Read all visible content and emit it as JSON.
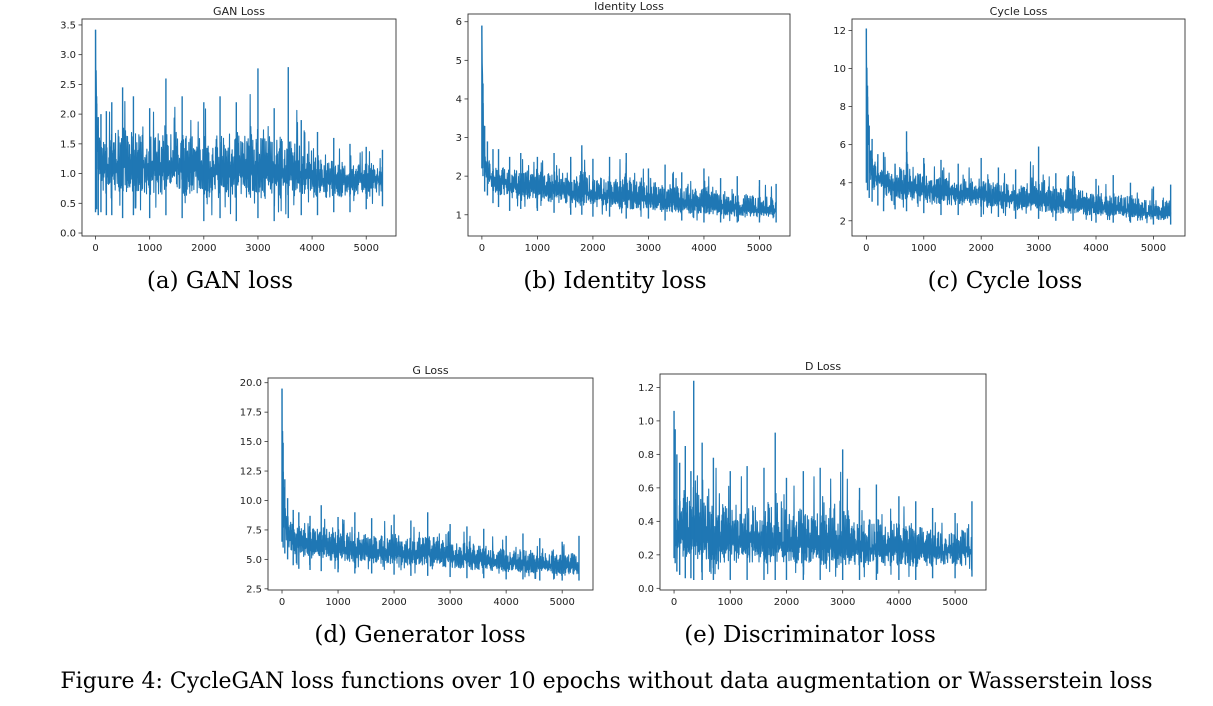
{
  "figure_caption": "Figure 4: CycleGAN loss functions over 10 epochs without data augmentation or Wasserstein loss",
  "line_color": "#1f77b4",
  "chart_data": [
    {
      "id": "gan",
      "type": "line",
      "title": "GAN Loss",
      "caption": "(a) GAN loss",
      "xlabel": "",
      "ylabel": "",
      "xlim": [
        -250,
        5550
      ],
      "ylim": [
        -0.05,
        3.6
      ],
      "xticks": [
        0,
        1000,
        2000,
        3000,
        4000,
        5000
      ],
      "yticks": [
        0.0,
        0.5,
        1.0,
        1.5,
        2.0,
        2.5,
        3.0,
        3.5
      ],
      "ytick_labels": [
        "0.0",
        "0.5",
        "1.0",
        "1.5",
        "2.0",
        "2.5",
        "3.0",
        "3.5"
      ],
      "series": [
        {
          "x": [
            0,
            20,
            50,
            100,
            200,
            300,
            500,
            700,
            1000,
            1300,
            1600,
            2000,
            2300,
            2600,
            3000,
            3300,
            3560,
            3800,
            4100,
            4400,
            4700,
            5000,
            5300
          ],
          "y": [
            3.42,
            2.3,
            1.4,
            1.2,
            1.1,
            1.15,
            1.1,
            1.15,
            1.1,
            1.05,
            1.1,
            1.05,
            1.0,
            1.05,
            1.0,
            0.98,
            1.0,
            0.95,
            0.92,
            0.9,
            0.9,
            0.92,
            0.9
          ],
          "low": [
            0.35,
            0.4,
            0.3,
            0.35,
            0.3,
            0.3,
            0.25,
            0.3,
            0.25,
            0.3,
            0.25,
            0.2,
            0.25,
            0.2,
            0.25,
            0.2,
            0.25,
            0.3,
            0.3,
            0.35,
            0.35,
            0.4,
            0.45
          ],
          "high": [
            3.42,
            2.3,
            1.95,
            2.0,
            2.05,
            2.2,
            2.45,
            2.3,
            2.1,
            2.6,
            2.3,
            2.2,
            2.3,
            2.2,
            2.77,
            2.1,
            2.79,
            1.9,
            1.7,
            1.6,
            1.5,
            1.45,
            1.4
          ]
        }
      ]
    },
    {
      "id": "identity",
      "type": "line",
      "title": "Identity Loss",
      "caption": "(b) Identity loss",
      "xlabel": "",
      "ylabel": "",
      "xlim": [
        -250,
        5550
      ],
      "ylim": [
        0.45,
        6.2
      ],
      "xticks": [
        0,
        1000,
        2000,
        3000,
        4000,
        5000
      ],
      "yticks": [
        1,
        2,
        3,
        4,
        5,
        6
      ],
      "ytick_labels": [
        "1",
        "2",
        "3",
        "4",
        "5",
        "6"
      ],
      "series": [
        {
          "x": [
            0,
            20,
            50,
            100,
            200,
            300,
            500,
            700,
            1000,
            1300,
            1600,
            1800,
            2000,
            2300,
            2600,
            3000,
            3300,
            3600,
            4000,
            4300,
            4600,
            5000,
            5300
          ],
          "y": [
            5.9,
            3.6,
            2.4,
            2.1,
            1.9,
            1.85,
            1.8,
            1.75,
            1.7,
            1.65,
            1.6,
            1.55,
            1.5,
            1.5,
            1.45,
            1.4,
            1.35,
            1.3,
            1.25,
            1.2,
            1.15,
            1.1,
            1.1
          ],
          "low": [
            2.2,
            2.0,
            1.6,
            1.5,
            1.3,
            1.2,
            1.1,
            1.15,
            1.1,
            1.05,
            1.0,
            1.0,
            0.95,
            0.95,
            0.9,
            0.9,
            0.85,
            0.85,
            0.8,
            0.8,
            0.8,
            0.8,
            0.8
          ],
          "high": [
            5.9,
            4.4,
            3.3,
            2.9,
            2.7,
            2.7,
            2.5,
            2.6,
            2.5,
            2.6,
            2.5,
            2.8,
            2.45,
            2.5,
            2.6,
            2.2,
            2.3,
            2.1,
            2.2,
            1.95,
            2.0,
            1.9,
            1.8
          ]
        }
      ]
    },
    {
      "id": "cycle",
      "type": "line",
      "title": "Cycle Loss",
      "caption": "(c) Cycle loss",
      "xlabel": "",
      "ylabel": "",
      "xlim": [
        -250,
        5550
      ],
      "ylim": [
        1.2,
        12.6
      ],
      "xticks": [
        0,
        1000,
        2000,
        3000,
        4000,
        5000
      ],
      "yticks": [
        2,
        4,
        6,
        8,
        10,
        12
      ],
      "ytick_labels": [
        "2",
        "4",
        "6",
        "8",
        "10",
        "12"
      ],
      "series": [
        {
          "x": [
            0,
            20,
            50,
            100,
            200,
            300,
            500,
            700,
            1000,
            1300,
            1600,
            2000,
            2300,
            2600,
            3000,
            3300,
            3600,
            4000,
            4300,
            4600,
            5000,
            5300
          ],
          "y": [
            12.1,
            8.5,
            5.5,
            4.6,
            4.2,
            4.0,
            3.8,
            3.8,
            3.6,
            3.5,
            3.4,
            3.3,
            3.2,
            3.1,
            3.0,
            2.9,
            2.8,
            2.7,
            2.6,
            2.5,
            2.4,
            2.3
          ],
          "low": [
            4.0,
            3.6,
            3.2,
            3.0,
            2.8,
            2.5,
            2.6,
            2.5,
            2.4,
            2.3,
            2.3,
            2.2,
            2.2,
            2.1,
            2.1,
            2.0,
            2.0,
            1.9,
            1.9,
            1.9,
            1.8,
            1.8
          ],
          "high": [
            12.1,
            9.1,
            7.0,
            6.3,
            5.5,
            5.6,
            5.0,
            6.7,
            5.3,
            5.2,
            5.0,
            5.3,
            4.8,
            4.7,
            5.9,
            4.5,
            4.6,
            4.2,
            4.4,
            4.0,
            3.8,
            3.9
          ]
        }
      ]
    },
    {
      "id": "generator",
      "type": "line",
      "title": "G Loss",
      "caption": "(d) Generator loss",
      "xlabel": "",
      "ylabel": "",
      "xlim": [
        -250,
        5550
      ],
      "ylim": [
        2.4,
        20.4
      ],
      "xticks": [
        0,
        1000,
        2000,
        3000,
        4000,
        5000
      ],
      "yticks": [
        2.5,
        5.0,
        7.5,
        10.0,
        12.5,
        15.0,
        17.5,
        20.0
      ],
      "ytick_labels": [
        "2.5",
        "5.0",
        "7.5",
        "10.0",
        "12.5",
        "15.0",
        "17.5",
        "20.0"
      ],
      "series": [
        {
          "x": [
            0,
            20,
            50,
            100,
            200,
            300,
            500,
            700,
            1000,
            1300,
            1600,
            2000,
            2300,
            2600,
            3000,
            3300,
            3600,
            4000,
            4300,
            4600,
            5000,
            5300
          ],
          "y": [
            19.5,
            12.5,
            9.0,
            7.5,
            6.8,
            6.5,
            6.3,
            6.2,
            6.0,
            5.8,
            5.7,
            5.6,
            5.5,
            5.4,
            5.2,
            5.0,
            4.9,
            4.7,
            4.6,
            4.5,
            4.4,
            4.3
          ],
          "low": [
            6.5,
            6.0,
            5.5,
            5.0,
            4.5,
            4.2,
            4.1,
            4.0,
            3.9,
            3.8,
            3.8,
            3.7,
            3.6,
            3.6,
            3.5,
            3.4,
            3.4,
            3.3,
            3.3,
            3.2,
            3.2,
            3.2
          ],
          "high": [
            19.5,
            14.9,
            11.8,
            10.2,
            9.2,
            9.0,
            8.7,
            9.6,
            8.6,
            9.0,
            8.5,
            8.8,
            8.3,
            9.0,
            8.0,
            7.8,
            7.6,
            7.0,
            7.2,
            6.8,
            6.5,
            7.0
          ]
        }
      ]
    },
    {
      "id": "discriminator",
      "type": "line",
      "title": "D Loss",
      "caption": "(e) Discriminator loss",
      "xlabel": "",
      "ylabel": "",
      "xlim": [
        -250,
        5550
      ],
      "ylim": [
        -0.01,
        1.28
      ],
      "xticks": [
        0,
        1000,
        2000,
        3000,
        4000,
        5000
      ],
      "yticks": [
        0.0,
        0.2,
        0.4,
        0.6,
        0.8,
        1.0,
        1.2
      ],
      "ytick_labels": [
        "0.0",
        "0.2",
        "0.4",
        "0.6",
        "0.8",
        "1.0",
        "1.2"
      ],
      "series": [
        {
          "x": [
            0,
            20,
            50,
            100,
            200,
            300,
            350,
            500,
            700,
            1000,
            1300,
            1600,
            1800,
            2000,
            2300,
            2600,
            3000,
            3300,
            3600,
            4000,
            4300,
            4600,
            5000,
            5300
          ],
          "y": [
            0.4,
            0.35,
            0.3,
            0.3,
            0.3,
            0.32,
            0.3,
            0.3,
            0.3,
            0.28,
            0.28,
            0.27,
            0.27,
            0.26,
            0.26,
            0.25,
            0.25,
            0.24,
            0.24,
            0.23,
            0.22,
            0.22,
            0.22,
            0.22
          ],
          "low": [
            0.18,
            0.15,
            0.1,
            0.08,
            0.06,
            0.06,
            0.05,
            0.05,
            0.05,
            0.05,
            0.05,
            0.05,
            0.05,
            0.05,
            0.05,
            0.05,
            0.05,
            0.05,
            0.05,
            0.05,
            0.05,
            0.06,
            0.06,
            0.07
          ],
          "high": [
            1.06,
            0.95,
            0.8,
            0.75,
            0.85,
            0.7,
            1.24,
            0.87,
            0.78,
            0.7,
            0.73,
            0.72,
            0.93,
            0.66,
            0.7,
            0.72,
            0.83,
            0.6,
            0.62,
            0.55,
            0.52,
            0.48,
            0.45,
            0.52
          ]
        }
      ]
    }
  ]
}
